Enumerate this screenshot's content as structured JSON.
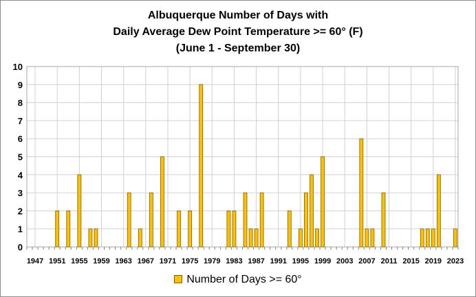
{
  "chart_data": {
    "type": "bar",
    "title_lines": [
      "Albuquerque Number of Days with",
      "Daily Average Dew Point Temperature >= 60° (F)",
      "(June 1 - September 30)"
    ],
    "xlabel": "",
    "ylabel": "",
    "ylim": [
      0,
      10
    ],
    "y_ticks": [
      0,
      1,
      2,
      3,
      4,
      5,
      6,
      7,
      8,
      9,
      10
    ],
    "x_tick_labels": [
      "1947",
      "1951",
      "1955",
      "1959",
      "1963",
      "1967",
      "1971",
      "1975",
      "1979",
      "1983",
      "1987",
      "1991",
      "1995",
      "1999",
      "2003",
      "2007",
      "2011",
      "2015",
      "2019",
      "2023"
    ],
    "grid": true,
    "legend_position": "bottom",
    "bar_color": "#FFC000",
    "series": [
      {
        "name": "Number of Days >= 60°",
        "years": [
          1951,
          1953,
          1955,
          1957,
          1958,
          1964,
          1966,
          1968,
          1970,
          1973,
          1975,
          1977,
          1982,
          1983,
          1985,
          1986,
          1987,
          1988,
          1993,
          1995,
          1996,
          1997,
          1998,
          1999,
          2006,
          2007,
          2008,
          2010,
          2017,
          2018,
          2019,
          2020,
          2023
        ],
        "values": [
          2,
          2,
          4,
          1,
          1,
          3,
          1,
          3,
          5,
          2,
          2,
          9,
          2,
          2,
          3,
          1,
          1,
          3,
          2,
          1,
          3,
          4,
          1,
          5,
          6,
          1,
          1,
          3,
          1,
          1,
          1,
          4,
          1
        ]
      }
    ]
  }
}
